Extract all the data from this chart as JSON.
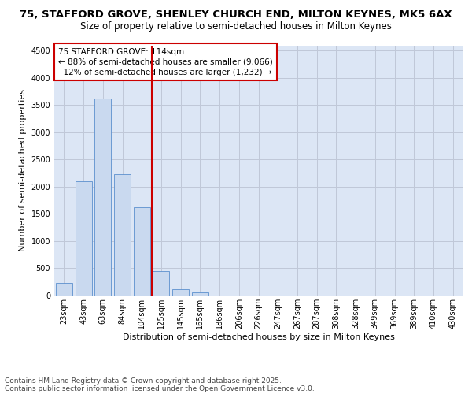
{
  "title_line1": "75, STAFFORD GROVE, SHENLEY CHURCH END, MILTON KEYNES, MK5 6AX",
  "title_line2": "Size of property relative to semi-detached houses in Milton Keynes",
  "xlabel": "Distribution of semi-detached houses by size in Milton Keynes",
  "ylabel": "Number of semi-detached properties",
  "categories": [
    "23sqm",
    "43sqm",
    "63sqm",
    "84sqm",
    "104sqm",
    "125sqm",
    "145sqm",
    "165sqm",
    "186sqm",
    "206sqm",
    "226sqm",
    "247sqm",
    "267sqm",
    "287sqm",
    "308sqm",
    "328sqm",
    "349sqm",
    "369sqm",
    "389sqm",
    "410sqm",
    "430sqm"
  ],
  "values": [
    230,
    2100,
    3620,
    2230,
    1620,
    450,
    110,
    60,
    0,
    0,
    0,
    0,
    0,
    0,
    0,
    0,
    0,
    0,
    0,
    0,
    0
  ],
  "bar_color": "#c9d9ef",
  "bar_edge_color": "#5b8fce",
  "vline_color": "#cc0000",
  "annotation_box_text": "75 STAFFORD GROVE: 114sqm\n← 88% of semi-detached houses are smaller (9,066)\n  12% of semi-detached houses are larger (1,232) →",
  "annotation_box_color": "#cc0000",
  "ylim": [
    0,
    4600
  ],
  "yticks": [
    0,
    500,
    1000,
    1500,
    2000,
    2500,
    3000,
    3500,
    4000,
    4500
  ],
  "grid_color": "#c0c8d8",
  "bg_color": "#dce6f5",
  "footer_line1": "Contains HM Land Registry data © Crown copyright and database right 2025.",
  "footer_line2": "Contains public sector information licensed under the Open Government Licence v3.0.",
  "title_fontsize": 9.5,
  "subtitle_fontsize": 8.5,
  "axis_label_fontsize": 8,
  "tick_fontsize": 7,
  "annotation_fontsize": 7.5,
  "footer_fontsize": 6.5
}
